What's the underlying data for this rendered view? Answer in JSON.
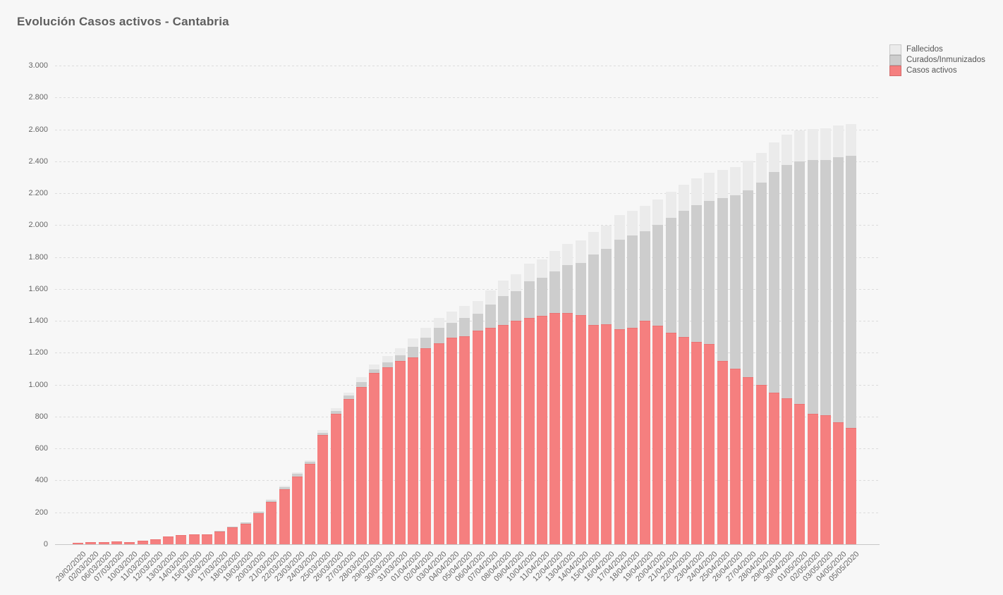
{
  "title": "Evolución Casos activos - Cantabria",
  "legend": [
    {
      "label": "Fallecidos",
      "color": "#ebebeb"
    },
    {
      "label": "Curados/Inmunizados",
      "color": "#cdcdcd"
    },
    {
      "label": "Casos activos",
      "color": "#f57f7f"
    }
  ],
  "y_axis": {
    "ticks": [
      "3.000",
      "2.800",
      "2.600",
      "2.400",
      "2.200",
      "2.000",
      "1.800",
      "1.600",
      "1.400",
      "1.200",
      "1.000",
      "800",
      "600",
      "400",
      "200",
      "0"
    ],
    "max": 3000,
    "step": 200
  },
  "colors": {
    "background": "#f7f7f7",
    "activos": "#f57f7f",
    "curados": "#cdcdcd",
    "fallecidos": "#ebebeb",
    "grid": "#dcdcdc",
    "text": "#666666"
  },
  "chart_data": {
    "type": "bar",
    "stacked": true,
    "title": "Evolución Casos activos - Cantabria",
    "xlabel": "",
    "ylabel": "",
    "ylim": [
      0,
      3000
    ],
    "grid": "horizontal-dashed",
    "legend_position": "top-right",
    "categories": [
      "29/02/2020",
      "02/03/2020",
      "06/03/2020",
      "07/03/2020",
      "10/03/2020",
      "11/03/2020",
      "12/03/2020",
      "13/03/2020",
      "14/03/2020",
      "15/03/2020",
      "16/03/2020",
      "17/03/2020",
      "18/03/2020",
      "19/03/2020",
      "20/03/2020",
      "21/03/2020",
      "22/03/2020",
      "23/03/2020",
      "24/03/2020",
      "25/03/2020",
      "26/03/2020",
      "27/03/2020",
      "28/03/2020",
      "29/03/2020",
      "30/03/2020",
      "31/03/2020",
      "01/04/2020",
      "02/04/2020",
      "03/04/2020",
      "04/04/2020",
      "05/04/2020",
      "06/04/2020",
      "07/04/2020",
      "08/04/2020",
      "09/04/2020",
      "10/04/2020",
      "11/04/2020",
      "12/04/2020",
      "13/04/2020",
      "14/04/2020",
      "15/04/2020",
      "16/04/2020",
      "17/04/2020",
      "18/04/2020",
      "19/04/2020",
      "20/04/2020",
      "21/04/2020",
      "22/04/2020",
      "23/04/2020",
      "24/04/2020",
      "25/04/2020",
      "26/04/2020",
      "27/04/2020",
      "28/04/2020",
      "29/04/2020",
      "30/04/2020",
      "01/05/2020",
      "02/05/2020",
      "03/05/2020",
      "04/05/2020",
      "05/05/2020"
    ],
    "series": [
      {
        "name": "Casos activos",
        "color": "#f57f7f",
        "values": [
          10,
          12,
          15,
          18,
          12,
          20,
          32,
          48,
          57,
          62,
          60,
          80,
          105,
          130,
          195,
          265,
          345,
          425,
          505,
          685,
          818,
          910,
          986,
          1075,
          1110,
          1150,
          1172,
          1229,
          1260,
          1295,
          1304,
          1340,
          1355,
          1375,
          1400,
          1420,
          1432,
          1450,
          1448,
          1437,
          1376,
          1379,
          1348,
          1358,
          1400,
          1368,
          1325,
          1297,
          1268,
          1255,
          1150,
          1099,
          1048,
          1000,
          952,
          916,
          878,
          816,
          809,
          765,
          731
        ]
      },
      {
        "name": "Curados/Inmunizados",
        "color": "#cdcdcd",
        "values": [
          0,
          0,
          0,
          0,
          0,
          0,
          0,
          0,
          0,
          0,
          2,
          3,
          4,
          6,
          8,
          8,
          12,
          15,
          10,
          14,
          16,
          20,
          32,
          20,
          32,
          35,
          66,
          67,
          95,
          93,
          112,
          103,
          146,
          181,
          188,
          229,
          236,
          259,
          301,
          326,
          438,
          472,
          561,
          579,
          563,
          632,
          722,
          791,
          856,
          898,
          1018,
          1086,
          1172,
          1266,
          1379,
          1459,
          1523,
          1590,
          1600,
          1660,
          1702
        ]
      },
      {
        "name": "Fallecidos",
        "color": "#ebebeb",
        "values": [
          0,
          0,
          0,
          0,
          0,
          0,
          0,
          0,
          0,
          0,
          0,
          1,
          2,
          3,
          5,
          8,
          8,
          10,
          12,
          15,
          18,
          22,
          27,
          33,
          38,
          45,
          52,
          59,
          65,
          72,
          78,
          83,
          89,
          96,
          102,
          108,
          118,
          129,
          135,
          141,
          144,
          147,
          153,
          155,
          157,
          160,
          163,
          167,
          171,
          174,
          177,
          180,
          183,
          186,
          189,
          191,
          193,
          196,
          197,
          199,
          200
        ]
      }
    ]
  }
}
